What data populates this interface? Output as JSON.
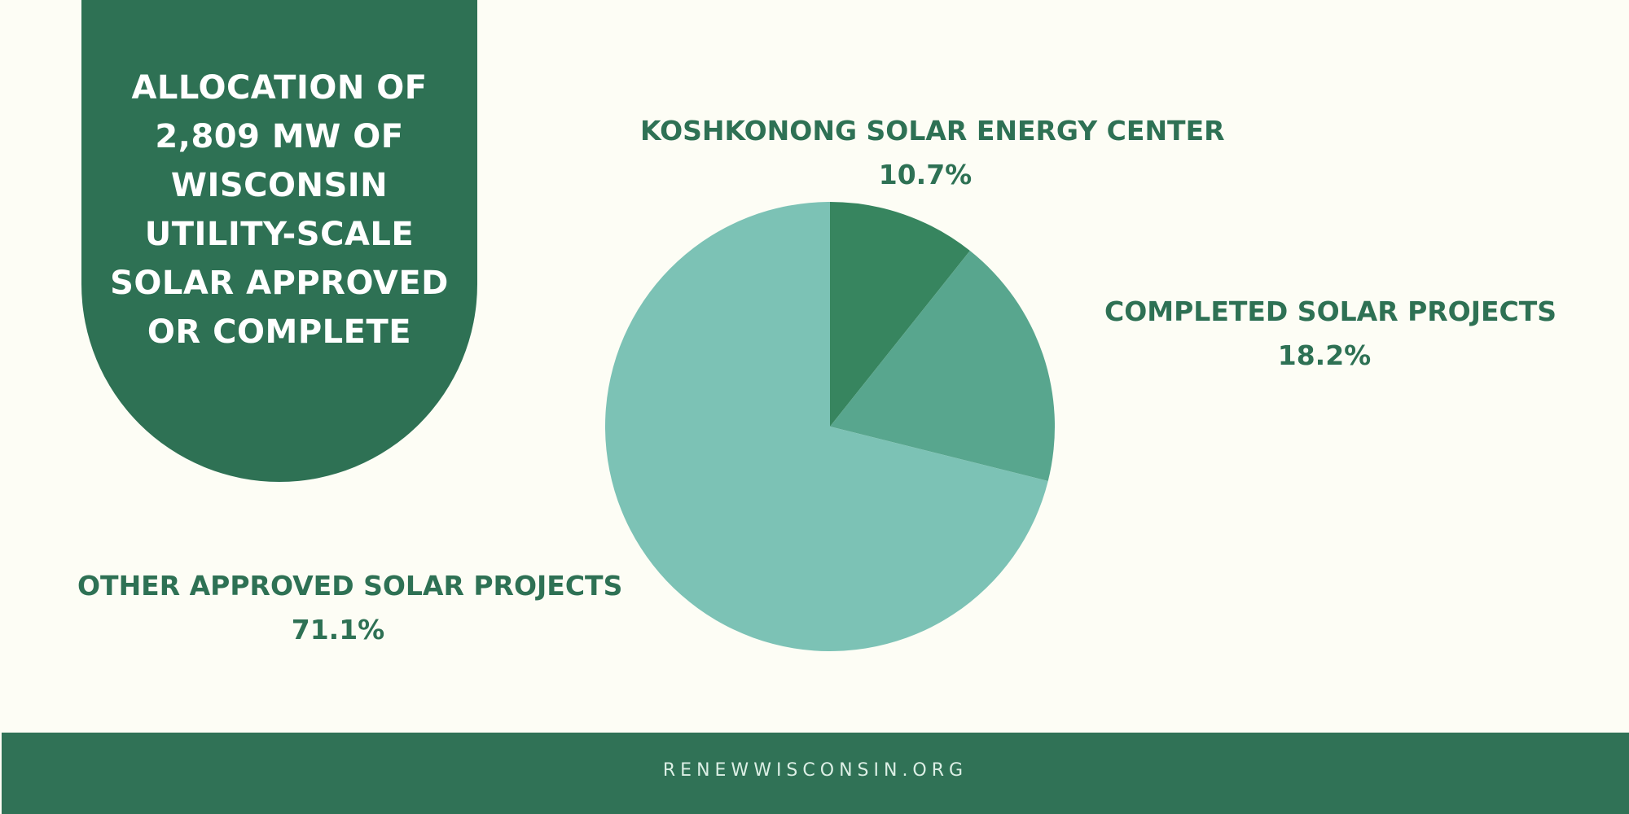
{
  "title": "ALLOCATION OF\n2,809 MW OF\nWISCONSIN\nUTILITY-SCALE\nSOLAR APPROVED\nOR COMPLETE",
  "footer": {
    "text": "RENEWWISCONSIN.ORG"
  },
  "colors": {
    "background": "#fdfdf5",
    "brand_green": "#2e7154",
    "slice_koshkonong": "#37855f",
    "slice_completed": "#58a68e",
    "slice_other": "#7cc2b5"
  },
  "chart_data": {
    "type": "pie",
    "title": "ALLOCATION OF 2,809 MW OF WISCONSIN UTILITY-SCALE SOLAR APPROVED OR COMPLETE",
    "total_mw": 2809,
    "slices": [
      {
        "label": "KOSHKONONG SOLAR ENERGY CENTER",
        "value": 10.7,
        "value_label": "10.7%",
        "color": "#37855f"
      },
      {
        "label": "COMPLETED SOLAR PROJECTS",
        "value": 18.2,
        "value_label": "18.2%",
        "color": "#58a68e"
      },
      {
        "label": "OTHER APPROVED SOLAR PROJECTS",
        "value": 71.1,
        "value_label": "71.1%",
        "color": "#7cc2b5"
      }
    ]
  }
}
